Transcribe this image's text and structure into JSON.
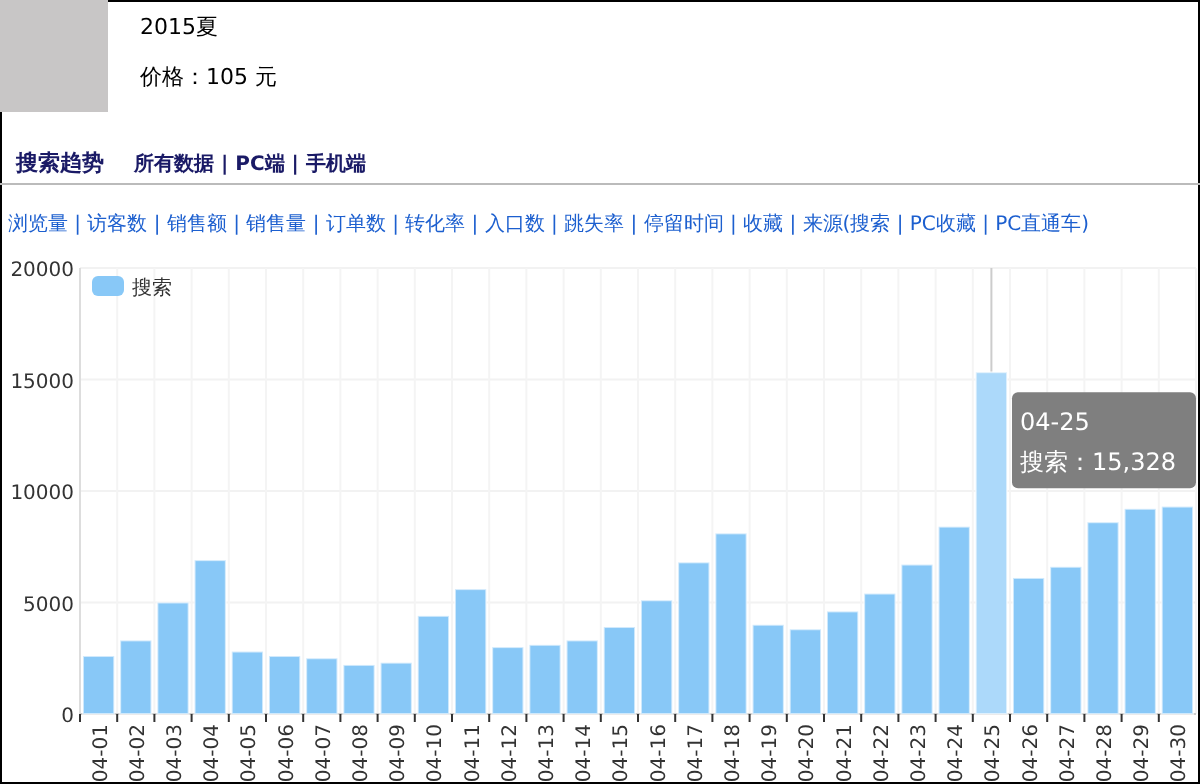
{
  "chart_data": {
    "type": "bar",
    "title": "搜索趋势",
    "annotations": [
      "2015夏",
      "价格：105 元",
      "所有数据 | PC端 | 手机端",
      "浏览量 | 访客数 | 销售额 | 销售量 | 订单数 | 转化率 | 入口数 | 跳失率 | 停留时间 | 收藏 | 来源(搜索 | PC收藏 | PC直通车)",
      {
        "text": "04-25\n搜索：15,328",
        "x": "04-25",
        "y": 15328
      }
    ],
    "categories": [
      "04-01",
      "04-02",
      "04-03",
      "04-04",
      "04-05",
      "04-06",
      "04-07",
      "04-08",
      "04-09",
      "04-10",
      "04-11",
      "04-12",
      "04-13",
      "04-14",
      "04-15",
      "04-16",
      "04-17",
      "04-18",
      "04-19",
      "04-20",
      "04-21",
      "04-22",
      "04-23",
      "04-24",
      "04-25",
      "04-26",
      "04-27",
      "04-28",
      "04-29",
      "04-30"
    ],
    "series": [
      {
        "name": "搜索",
        "values": [
          2600,
          3300,
          5000,
          6900,
          2800,
          2600,
          2500,
          2200,
          2300,
          4400,
          5600,
          3000,
          3100,
          3300,
          3900,
          5100,
          6800,
          8100,
          4000,
          3800,
          4600,
          5400,
          6700,
          8400,
          15328,
          6100,
          6600,
          8600,
          9200,
          9300
        ],
        "colors": [
          "#88c8f7",
          "#88c8f7",
          "#88c8f7",
          "#88c8f7",
          "#88c8f7",
          "#88c8f7",
          "#88c8f7",
          "#88c8f7",
          "#88c8f7",
          "#88c8f7",
          "#88c8f7",
          "#88c8f7",
          "#88c8f7",
          "#88c8f7",
          "#88c8f7",
          "#88c8f7",
          "#88c8f7",
          "#88c8f7",
          "#88c8f7",
          "#88c8f7",
          "#88c8f7",
          "#88c8f7",
          "#88c8f7",
          "#88c8f7",
          "#acd9fa",
          "#88c8f7",
          "#88c8f7",
          "#88c8f7",
          "#88c8f7",
          "#88c8f7"
        ],
        "color": "#88c8f7"
      }
    ],
    "ylim": [
      0,
      20000
    ],
    "yticks": [
      0,
      5000,
      10000,
      15000,
      20000
    ],
    "ref_lines": [
      {
        "axis": "x",
        "value": "04-25",
        "color": "#cccccc"
      }
    ],
    "grid": true,
    "legend": "top left"
  }
}
